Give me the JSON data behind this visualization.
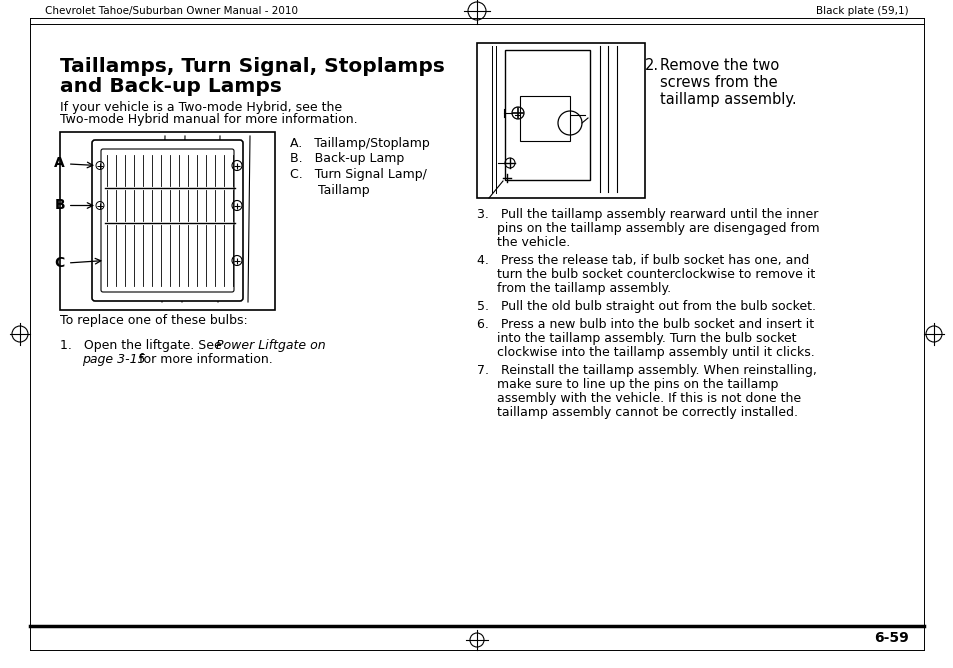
{
  "bg_color": "#ffffff",
  "header_left": "Chevrolet Tahoe/Suburban Owner Manual - 2010",
  "header_right": "Black plate (59,1)",
  "title_line1": "Taillamps, Turn Signal, Stoplamps",
  "title_line2": "and Back-up Lamps",
  "intro_line1": "If your vehicle is a Two-mode Hybrid, see the",
  "intro_line2": "Two-mode Hybrid manual for more information.",
  "list_a": "A.   Taillamp/Stoplamp",
  "list_b": "B.   Back-up Lamp",
  "list_c1": "C.   Turn Signal Lamp/",
  "list_c2": "       Taillamp",
  "replace_text": "To replace one of these bulbs:",
  "step1a": "1.   Open the liftgate. See ",
  "step1b": "Power Liftgate on",
  "step1c": "       page 3-15",
  "step1d": " for more information.",
  "step2a": "2.   Remove the two",
  "step2b": "screws from the",
  "step2c": "taillamp assembly.",
  "step3": "3.   Pull the taillamp assembly rearward until the inner",
  "step3b": "pins on the taillamp assembly are disengaged from",
  "step3c": "the vehicle.",
  "step4": "4.   Press the release tab, if bulb socket has one, and",
  "step4b": "turn the bulb socket counterclockwise to remove it",
  "step4c": "from the taillamp assembly.",
  "step5": "5.   Pull the old bulb straight out from the bulb socket.",
  "step6": "6.   Press a new bulb into the bulb socket and insert it",
  "step6b": "into the taillamp assembly. Turn the bulb socket",
  "step6c": "clockwise into the taillamp assembly until it clicks.",
  "step7": "7.   Reinstall the taillamp assembly. When reinstalling,",
  "step7b": "make sure to line up the pins on the taillamp",
  "step7c": "assembly with the vehicle. If this is not done the",
  "step7d": "taillamp assembly cannot be correctly installed.",
  "footer_page": "6-59",
  "title_fontsize": 14.5,
  "body_fontsize": 9.0,
  "header_fontsize": 7.5,
  "step2_fontsize": 10.5
}
